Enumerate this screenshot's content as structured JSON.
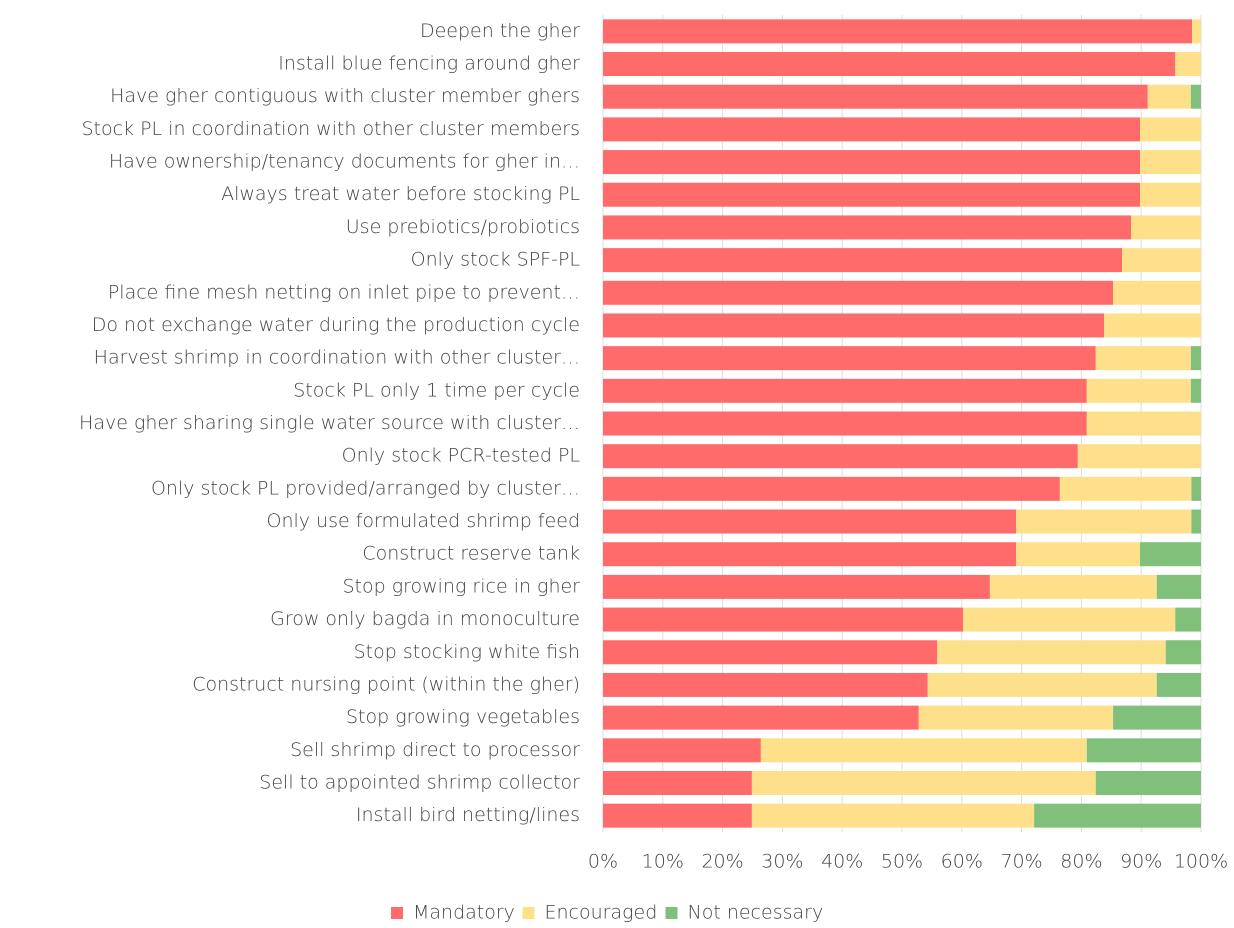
{
  "chart_data": {
    "type": "stacked-bar-horizontal",
    "categories": [
      "Deepen the gher",
      "Install blue fencing around gher",
      "Have gher contiguous with cluster member ghers",
      "Stock PL in coordination with other cluster members",
      "Have ownership/tenancy documents for gher in…",
      "Always treat water before stocking PL",
      "Use prebiotics/probiotics",
      "Only stock SPF-PL",
      "Place fine mesh netting on inlet pipe to prevent…",
      "Do not exchange water during the production cycle",
      "Harvest shrimp in coordination with other cluster…",
      "Stock PL only 1 time per cycle",
      "Have gher sharing single water source with cluster…",
      "Only stock PCR-tested PL",
      "Only stock PL provided/arranged by cluster…",
      "Only use formulated shrimp feed",
      "Construct reserve tank",
      "Stop growing rice in gher",
      "Grow only bagda in monoculture",
      "Stop stocking white fish",
      "Construct nursing point (within the gher)",
      "Stop growing vegetables",
      "Sell shrimp direct to processor",
      "Sell to appointed shrimp collector",
      "Install bird netting/lines"
    ],
    "series": [
      {
        "name": "Mandatory",
        "color": "#ff6b6b",
        "values": [
          98.5,
          95.7,
          91.1,
          89.8,
          89.8,
          89.8,
          88.3,
          86.8,
          85.3,
          83.8,
          82.4,
          80.9,
          80.9,
          79.4,
          76.4,
          69.1,
          69.1,
          64.7,
          60.2,
          55.9,
          54.3,
          52.8,
          26.4,
          24.9,
          24.9
        ]
      },
      {
        "name": "Encouraged",
        "color": "#ffe08a",
        "values": [
          1.5,
          4.3,
          7.2,
          10.2,
          10.2,
          10.2,
          11.7,
          13.2,
          14.7,
          16.2,
          15.9,
          17.4,
          19.1,
          20.6,
          22.0,
          29.3,
          20.7,
          27.9,
          35.5,
          38.2,
          38.3,
          32.5,
          54.5,
          57.5,
          47.2
        ]
      },
      {
        "name": "Not necessary",
        "color": "#80c07a",
        "values": [
          0,
          0,
          1.7,
          0,
          0,
          0,
          0,
          0,
          0,
          0,
          1.7,
          1.7,
          0,
          0,
          1.6,
          1.6,
          10.2,
          7.4,
          4.3,
          5.9,
          7.4,
          14.7,
          19.1,
          17.6,
          27.9
        ]
      }
    ],
    "xlim": [
      0,
      100
    ],
    "xticks": [
      {
        "value": 0,
        "label": "0%"
      },
      {
        "value": 10,
        "label": "10%"
      },
      {
        "value": 20,
        "label": "20%"
      },
      {
        "value": 30,
        "label": "30%"
      },
      {
        "value": 40,
        "label": "40%"
      },
      {
        "value": 50,
        "label": "50%"
      },
      {
        "value": 60,
        "label": "60%"
      },
      {
        "value": 70,
        "label": "70%"
      },
      {
        "value": 80,
        "label": "80%"
      },
      {
        "value": 90,
        "label": "90%"
      },
      {
        "value": 100,
        "label": "100%"
      }
    ],
    "grid": true,
    "legend": "bottom"
  }
}
